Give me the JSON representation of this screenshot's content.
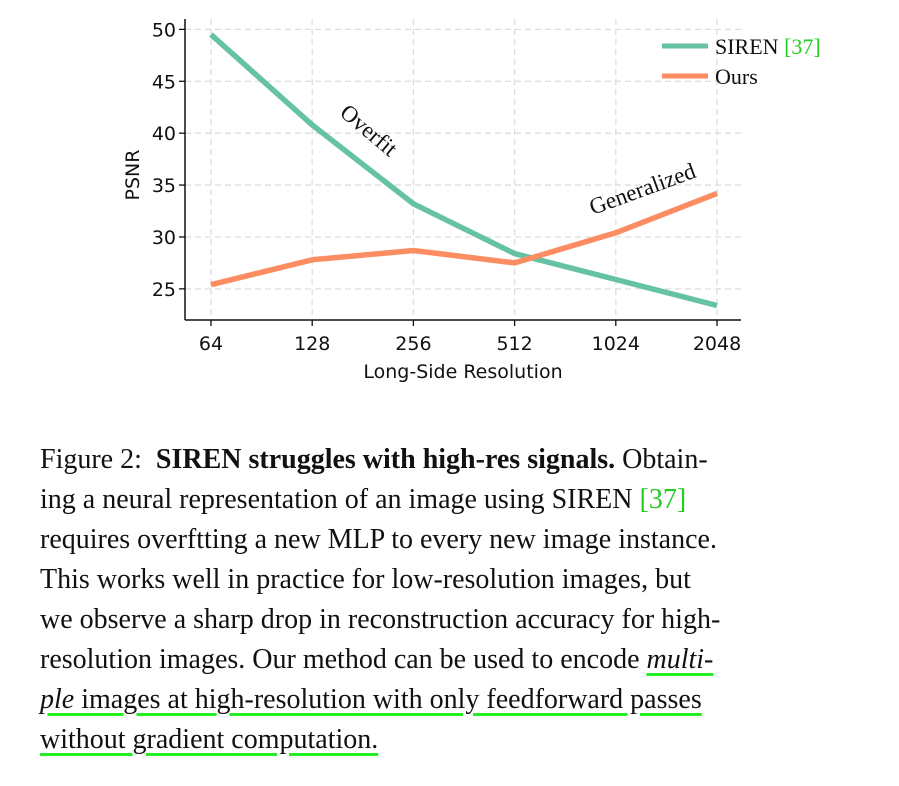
{
  "chart_data": {
    "type": "line",
    "categories": [
      "64",
      "128",
      "256",
      "512",
      "1024",
      "2048"
    ],
    "series": [
      {
        "name": "SIREN",
        "cite": "[37]",
        "color": "#66c2a5",
        "values": [
          49.5,
          40.8,
          33.2,
          28.4,
          25.9,
          23.4
        ]
      },
      {
        "name": "Ours",
        "cite": "",
        "color": "#fc8d62",
        "values": [
          25.4,
          27.8,
          28.7,
          27.5,
          30.4,
          34.2
        ]
      }
    ],
    "yticks": [
      25,
      30,
      35,
      40,
      45,
      50
    ],
    "ylim": [
      22,
      51
    ],
    "xlabel": "Long-Side Resolution",
    "ylabel": "PSNR",
    "grid": true,
    "legend": "top-right",
    "annotations": [
      {
        "text": "Overfit",
        "target_series": "SIREN"
      },
      {
        "text": "Generalized",
        "target_series": "Ours"
      }
    ]
  },
  "caption": {
    "label": "Figure 2:",
    "title": "SIREN struggles with high-res signals.",
    "l1_tail": "Obtain-",
    "l2_head": "ing a neural representation of an image using SIREN ",
    "l2_cite": "[37]",
    "line3": "requires overftting a new MLP to every new image instance.",
    "line4": "This works well in practice for low-resolution images, but",
    "line5": "we observe a sharp drop in reconstruction accuracy for high-",
    "l6_head": "resolution images. Our method can be used to encode ",
    "l6_ital": "multi-",
    "l7_ital": "ple",
    "l7_tail": " images at high-resolution with only feedforward passes",
    "line8": "without gradient computation."
  }
}
